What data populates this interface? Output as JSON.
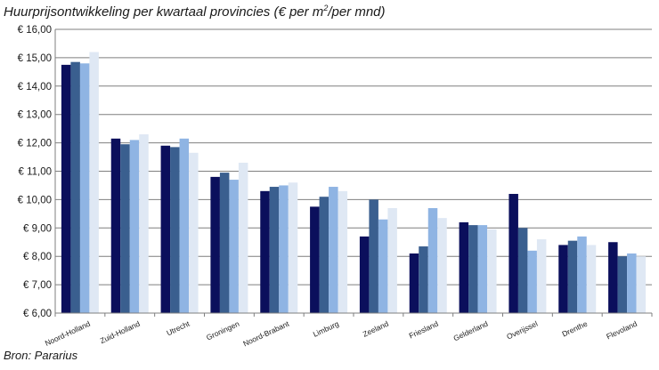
{
  "header": {
    "title_prefix": "Huurprijsontwikkeling  per kwartaal provincies (€ per m",
    "title_sup": "2",
    "title_suffix": "/per mnd)"
  },
  "footer": {
    "source": "Bron: Pararius"
  },
  "colors": {
    "series": [
      "#0b0f5c",
      "#3a5f8f",
      "#8fb4e3",
      "#dfe8f4"
    ],
    "grid": "#7f7f7f"
  },
  "chart_data": {
    "type": "bar",
    "title": "Huurprijsontwikkeling  per kwartaal provincies (€ per m2/per mnd)",
    "ylim": [
      6,
      16
    ],
    "yticks": [
      "€ 6,00",
      "€ 7,00",
      "€ 8,00",
      "€ 9,00",
      "€ 10,00",
      "€ 11,00",
      "€ 12,00",
      "€ 13,00",
      "€ 14,00",
      "€ 15,00",
      "€ 16,00"
    ],
    "grid": true,
    "legend": "none",
    "categories": [
      "Noord-Holland",
      "Zuid-Holland",
      "Utrecht",
      "Groningen",
      "Noord-Brabant",
      "Limburg",
      "Zeeland",
      "Friesland",
      "Gelderland",
      "Overijssel",
      "Drenthe",
      "Flevoland"
    ],
    "series": [
      {
        "values": [
          14.75,
          12.15,
          11.9,
          10.8,
          10.3,
          9.75,
          8.7,
          8.1,
          9.2,
          10.2,
          8.4,
          8.5
        ]
      },
      {
        "values": [
          14.85,
          11.95,
          11.85,
          10.95,
          10.45,
          10.1,
          10.0,
          8.35,
          9.1,
          9.0,
          8.55,
          8.0
        ]
      },
      {
        "values": [
          14.8,
          12.1,
          12.15,
          10.7,
          10.5,
          10.45,
          9.3,
          9.7,
          9.1,
          8.2,
          8.7,
          8.1
        ]
      },
      {
        "values": [
          15.2,
          12.3,
          11.65,
          11.3,
          10.6,
          10.3,
          9.7,
          9.35,
          8.95,
          8.6,
          8.4,
          8.0
        ]
      }
    ]
  }
}
